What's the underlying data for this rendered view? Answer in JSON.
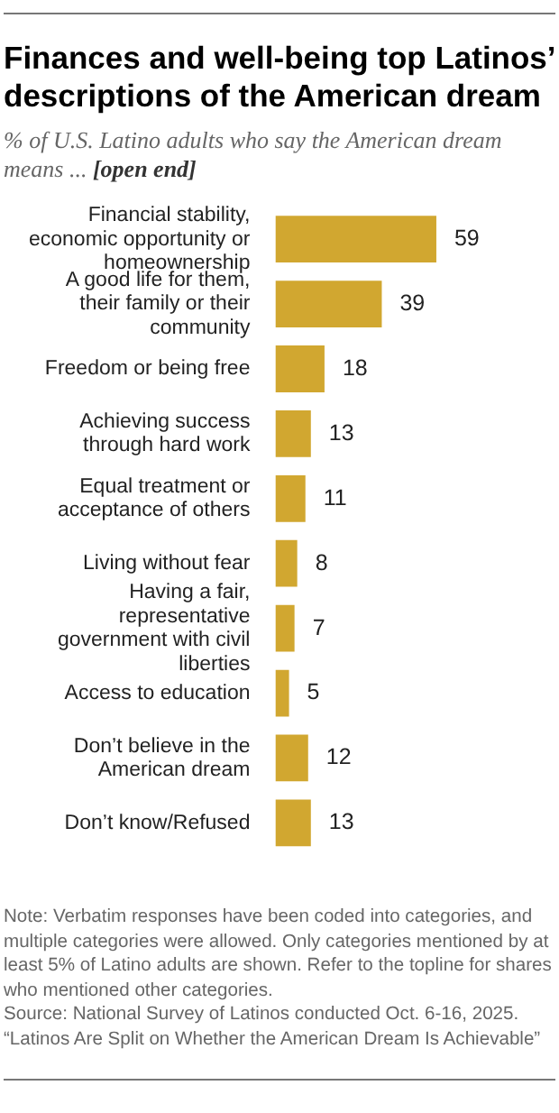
{
  "chart_data": {
    "type": "bar",
    "orientation": "horizontal",
    "title": "Finances and well-being top Latinos’ descriptions of the American dream",
    "subtitle": "% of U.S. Latino adults who say the American dream means ... [open end]",
    "categories": [
      "Financial stability, economic opportunity or homeownership",
      "A good life for them, their family or their community",
      "Freedom or being free",
      "Achieving success through hard work",
      "Equal treatment or acceptance of others",
      "Living without fear",
      "Having a fair, representative government with civil liberties",
      "Access to education",
      "Don’t believe in the American dream",
      "Don’t know/Refused"
    ],
    "values": [
      59,
      39,
      18,
      13,
      11,
      8,
      7,
      5,
      12,
      13
    ],
    "color": "#d1a730",
    "data_labels": true,
    "legend": false,
    "annotations": [
      "Note: Verbatim responses have been coded into categories, and multiple categories were allowed. Only categories mentioned by at least 5% of Latino adults are shown. Refer to the topline for shares who mentioned other categories.",
      "Source: National Survey of Latinos conducted Oct. 6-16, 2025.",
      "“Latinos Are Split on Whether the American Dream Is Achievable”"
    ]
  }
}
